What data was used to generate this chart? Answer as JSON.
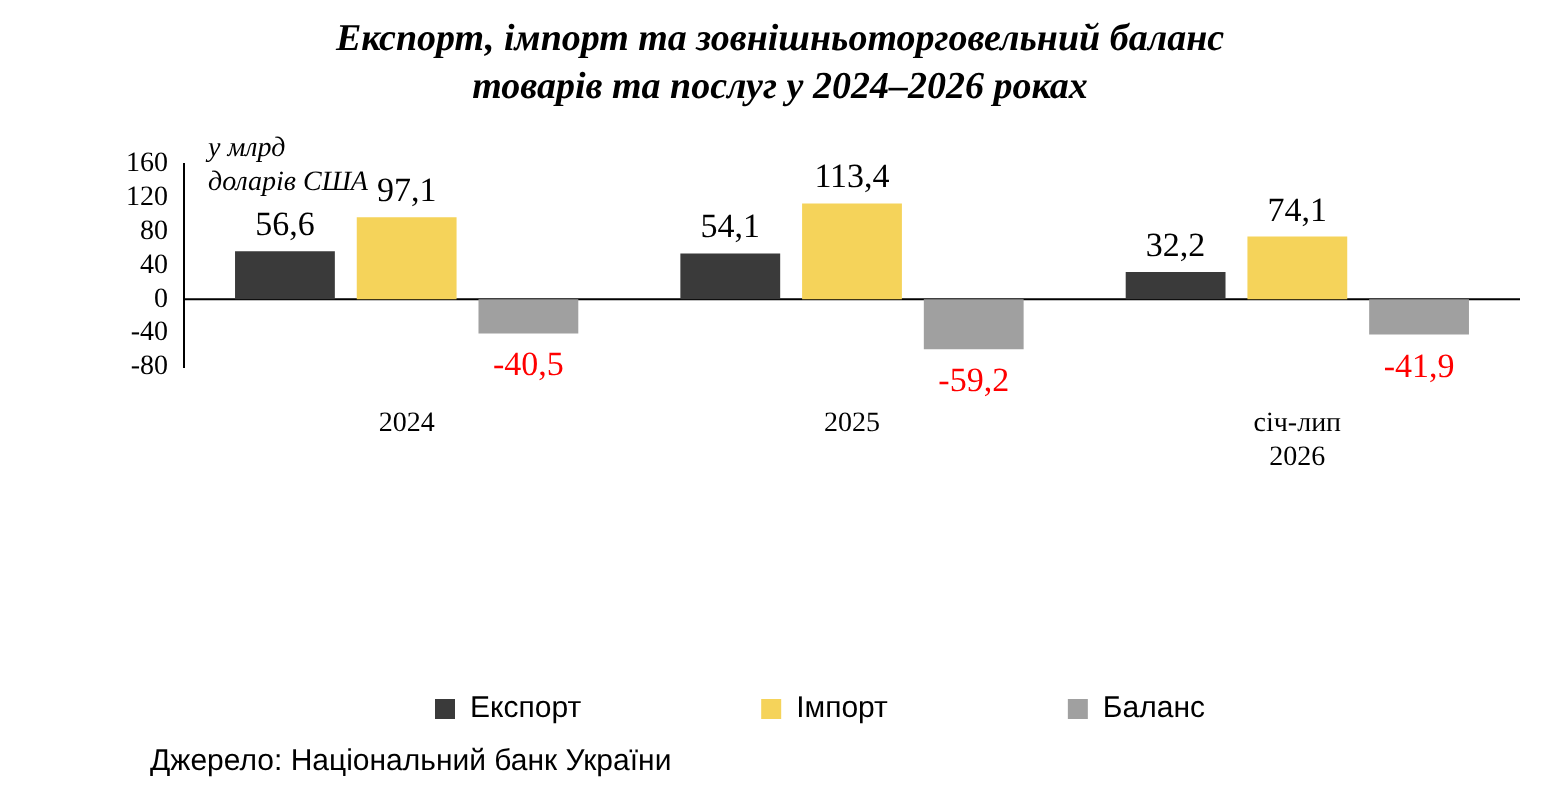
{
  "chart_data": {
    "type": "bar",
    "title": "Експорт, імпорт та зовнішньоторговельний баланс товарів та послуг у 2024–2026 роках",
    "ylabel": "у млрд доларів США",
    "categories": [
      "2024",
      "2025",
      "січ-лип 2026"
    ],
    "series": [
      {
        "name": "Експорт",
        "color": "#3a3a3a",
        "values": [
          56.6,
          54.1,
          32.2
        ],
        "value_labels": [
          "56,6",
          "54,1",
          "32,2"
        ]
      },
      {
        "name": "Імпорт",
        "color": "#f5d35a",
        "values": [
          97.1,
          113.4,
          74.1
        ],
        "value_labels": [
          "97,1",
          "113,4",
          "74,1"
        ]
      },
      {
        "name": "Баланс",
        "color": "#a0a0a0",
        "values": [
          -40.5,
          -59.2,
          -41.9
        ],
        "value_labels": [
          "-40,5",
          "-59,2",
          "-41,9"
        ]
      }
    ],
    "ylim": [
      -80,
      160
    ],
    "yticks": [
      -80,
      -40,
      0,
      40,
      80,
      120,
      160
    ],
    "grid": false,
    "legend": "bottom",
    "ref_lines": [
      {
        "axis": "y",
        "value": 0
      }
    ],
    "annotations": [
      "Джерело: Національний банк України"
    ]
  }
}
